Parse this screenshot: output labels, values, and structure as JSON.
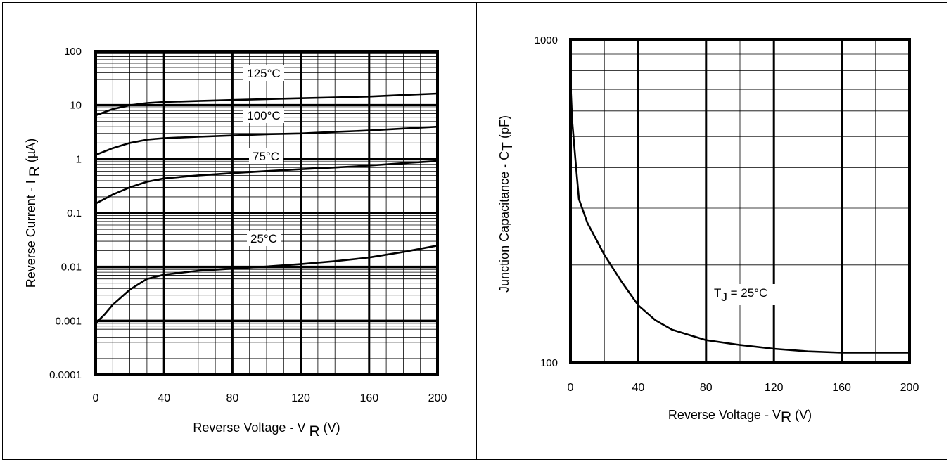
{
  "chart_data": [
    {
      "type": "line",
      "title": "",
      "xlabel": "Reverse Voltage - V",
      "xlabel_sub": "R",
      "xlabel_unit": "(V)",
      "ylabel": "Reverse Current - I",
      "ylabel_sub": "R",
      "ylabel_unit": "(µA)",
      "x_scale": "linear",
      "y_scale": "log",
      "xlim": [
        0,
        200
      ],
      "ylim": [
        0.0001,
        100
      ],
      "x_ticks": [
        "0",
        "40",
        "80",
        "120",
        "160",
        "200"
      ],
      "y_ticks": [
        "0.0001",
        "0.001",
        "0.01",
        "0.1",
        "1",
        "10",
        "100"
      ],
      "grid": true,
      "series": [
        {
          "name": "125°C",
          "x": [
            0,
            10,
            20,
            30,
            40,
            60,
            80,
            100,
            120,
            140,
            160,
            180,
            200
          ],
          "y": [
            6.5,
            8.5,
            10,
            11,
            11.5,
            12,
            12.5,
            13,
            13.5,
            14,
            14.5,
            15.5,
            16.5
          ]
        },
        {
          "name": "100°C",
          "x": [
            0,
            10,
            20,
            30,
            40,
            60,
            80,
            100,
            120,
            140,
            160,
            180,
            200
          ],
          "y": [
            1.2,
            1.6,
            2.0,
            2.3,
            2.45,
            2.6,
            2.75,
            2.9,
            3.0,
            3.2,
            3.4,
            3.7,
            4.0
          ]
        },
        {
          "name": "75°C",
          "x": [
            0,
            10,
            20,
            30,
            40,
            60,
            80,
            100,
            120,
            140,
            160,
            180,
            200
          ],
          "y": [
            0.15,
            0.22,
            0.3,
            0.38,
            0.44,
            0.5,
            0.55,
            0.6,
            0.65,
            0.7,
            0.76,
            0.84,
            0.92
          ]
        },
        {
          "name": "25°C",
          "x": [
            0,
            5,
            10,
            20,
            30,
            40,
            60,
            80,
            100,
            120,
            140,
            160,
            180,
            200
          ],
          "y": [
            0.0009,
            0.0013,
            0.002,
            0.0038,
            0.006,
            0.0072,
            0.0085,
            0.0093,
            0.0102,
            0.0113,
            0.0128,
            0.015,
            0.019,
            0.025
          ]
        }
      ]
    },
    {
      "type": "line",
      "title": "",
      "xlabel": "Reverse  Voltage  - V",
      "xlabel_sub": "R",
      "xlabel_unit": "(V)",
      "ylabel": "Junction Capacitance - C",
      "ylabel_sub": "T",
      "ylabel_unit": "(pF)",
      "x_scale": "linear",
      "y_scale": "log",
      "xlim": [
        0,
        200
      ],
      "ylim": [
        100,
        1000
      ],
      "x_ticks": [
        "0",
        "40",
        "80",
        "120",
        "160",
        "200"
      ],
      "y_ticks": [
        "100",
        "1000"
      ],
      "grid": true,
      "annotation": {
        "text": "T",
        "sub": "J",
        "rest": " = 25°C"
      },
      "series": [
        {
          "name": "",
          "x": [
            0,
            1,
            3,
            5,
            10,
            20,
            30,
            40,
            50,
            60,
            80,
            100,
            120,
            140,
            160,
            180,
            200
          ],
          "y": [
            740,
            560,
            420,
            320,
            270,
            215,
            178,
            150,
            135,
            126,
            117,
            113,
            110,
            108,
            107,
            107,
            107
          ]
        }
      ]
    }
  ]
}
